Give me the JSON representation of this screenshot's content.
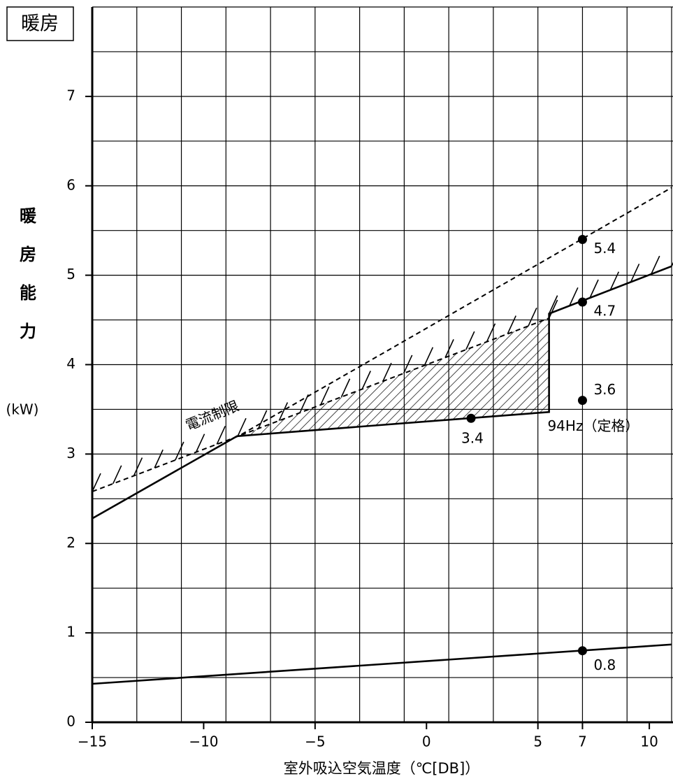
{
  "chart_data": {
    "type": "line",
    "title": "暖房",
    "ylabel": [
      "暖",
      "房",
      "能",
      "力"
    ],
    "yunit": "(kW)",
    "xlabel": "室外吸込空気温度（℃[DB]）",
    "xlim": [
      -15,
      11
    ],
    "ylim": [
      0,
      8
    ],
    "xticks": [
      {
        "value": -15,
        "label": "−15"
      },
      {
        "value": -10,
        "label": "−10"
      },
      {
        "value": -5,
        "label": "−5"
      },
      0,
      5,
      7,
      10
    ],
    "yticks": [
      0,
      1,
      2,
      3,
      4,
      5,
      6,
      7
    ],
    "xgrid": [
      -15,
      -13,
      -11,
      -9,
      -7,
      -5,
      -3,
      -1,
      1,
      3,
      5,
      7,
      9,
      11
    ],
    "ygrid": [
      0.5,
      1,
      1.5,
      2,
      2.5,
      3,
      3.5,
      4,
      4.5,
      5,
      5.5,
      6,
      6.5,
      7,
      7.5,
      8
    ],
    "grid": true,
    "color": "#000000",
    "series": [
      {
        "dashed": false,
        "x": [
          -15,
          -8.5,
          5.5,
          5.5,
          11
        ],
        "y": [
          2.28,
          3.2,
          3.47,
          4.57,
          5.1
        ]
      },
      {
        "dashed": true,
        "x": [
          -15,
          5.5
        ],
        "y": [
          2.58,
          4.52
        ]
      },
      {
        "dashed": true,
        "x": [
          -8.3,
          11
        ],
        "y": [
          3.22,
          5.98
        ]
      },
      {
        "dashed": false,
        "x": [
          -15,
          11
        ],
        "y": [
          0.43,
          0.87
        ]
      }
    ],
    "region": {
      "x": [
        -8.5,
        5.5,
        5.5,
        -8.5
      ],
      "y": [
        3.2,
        3.47,
        4.52,
        3.19
      ]
    },
    "points": {
      "x": [
        7,
        7,
        7,
        2,
        7
      ],
      "y": [
        5.4,
        4.7,
        3.6,
        3.4,
        0.8
      ]
    },
    "limit_label": "電流制限",
    "rated_label": "94Hz（定格）"
  }
}
